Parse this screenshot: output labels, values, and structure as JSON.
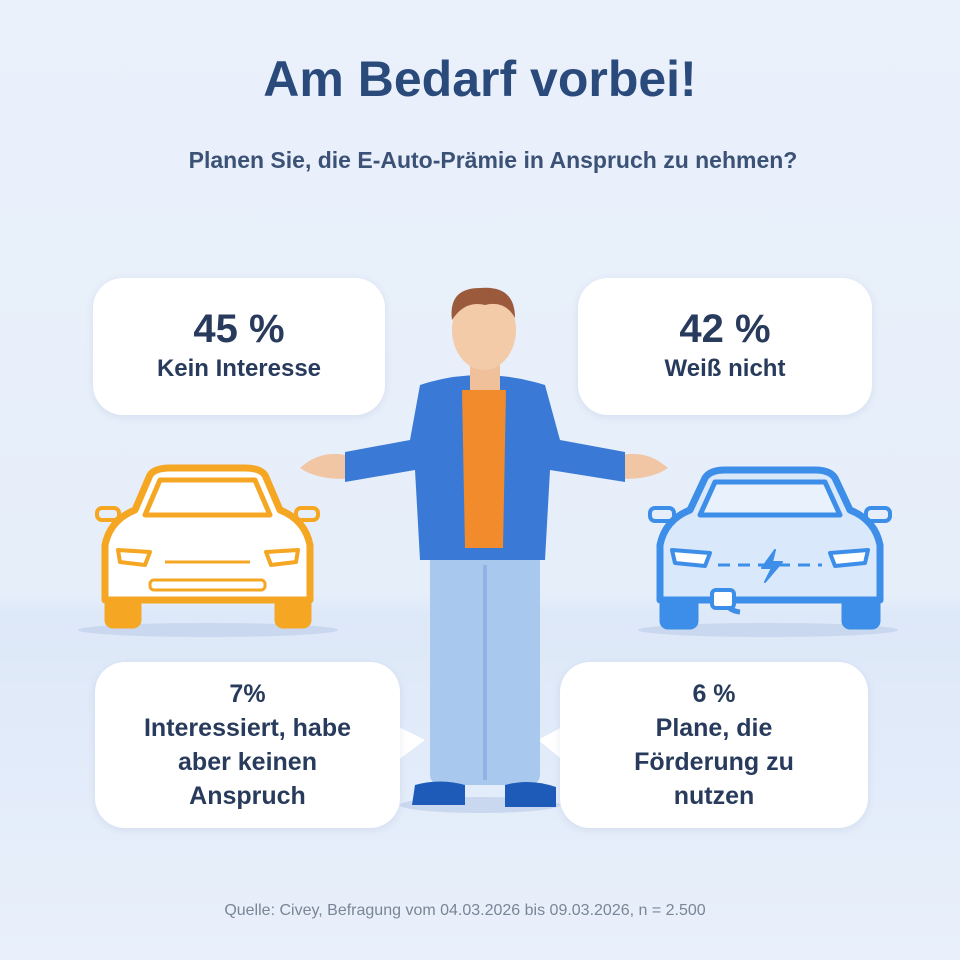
{
  "header": {
    "title": "Am Bedarf vorbei!",
    "subtitle": "Planen Sie, die E-Auto-Prämie in Anspruch zu nehmen?"
  },
  "bubbles": [
    {
      "value": "45 %",
      "label": "Kein Interesse"
    },
    {
      "value": "42 %",
      "label": "Weiß nicht"
    },
    {
      "value": "7%",
      "label": "Interessiert, habe aber keinen Anspruch"
    },
    {
      "value": "6 %",
      "label": "Plane, die Förderung zu nutzen"
    }
  ],
  "source": "Quelle: Civey, Befragung vom 04.03.2026 bis 09.03.2026, n = 2.500"
}
